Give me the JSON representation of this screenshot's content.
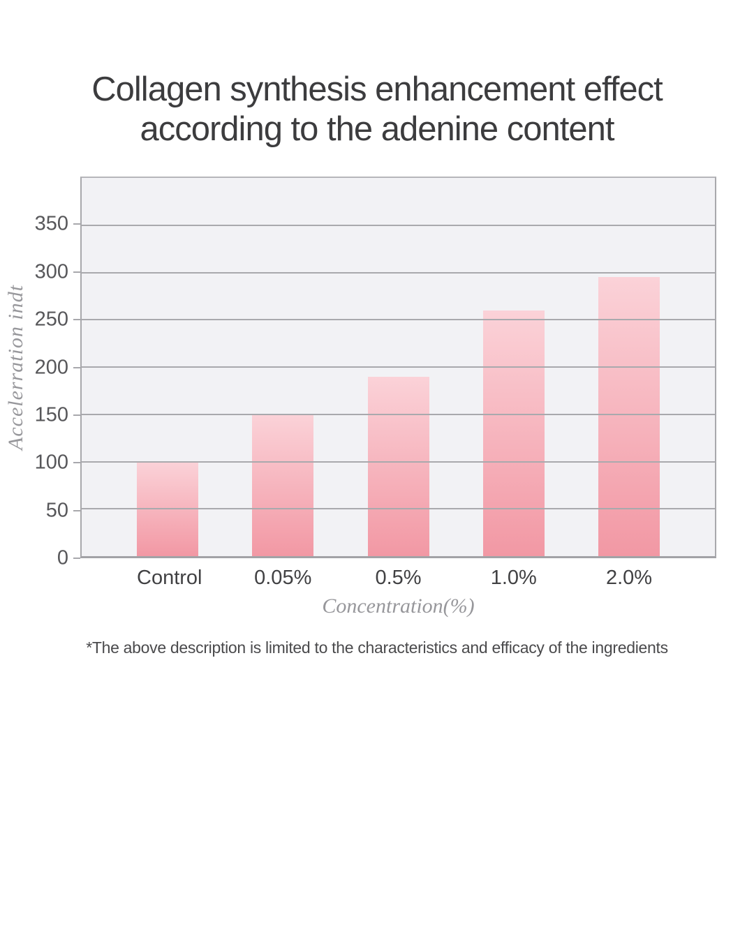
{
  "page": {
    "title_line1": "Collagen synthesis enhancement effect",
    "title_line2": "according to the adenine content",
    "footnote": "*The above description is limited to the characteristics and efficacy of the ingredients"
  },
  "chart_data": {
    "type": "bar",
    "title": "Collagen synthesis enhancement effect according to the adenine content",
    "categories": [
      "Control",
      "0.05%",
      "0.5%",
      "1.0%",
      "2.0%"
    ],
    "values": [
      100,
      150,
      190,
      260,
      295
    ],
    "xlabel": "Concentration(%)",
    "ylabel": "Accelerration indt",
    "ylim": [
      0,
      400
    ],
    "yticks": [
      0,
      50,
      100,
      150,
      200,
      250,
      300,
      350
    ],
    "grid": true,
    "legend": false,
    "gridlines_above_bars": true,
    "colors": {
      "bar_gradient_top": "#fbd2d8",
      "bar_gradient_bottom": "#f298a4",
      "plot_background": "#f2f2f5",
      "gridline": "#a9a9ad",
      "axis": "#a8a8ac",
      "title_text": "#3c3c3e",
      "tick_text": "#57575a",
      "axis_label_text": "#97979b",
      "footnote_text": "#4a4a4c"
    }
  }
}
